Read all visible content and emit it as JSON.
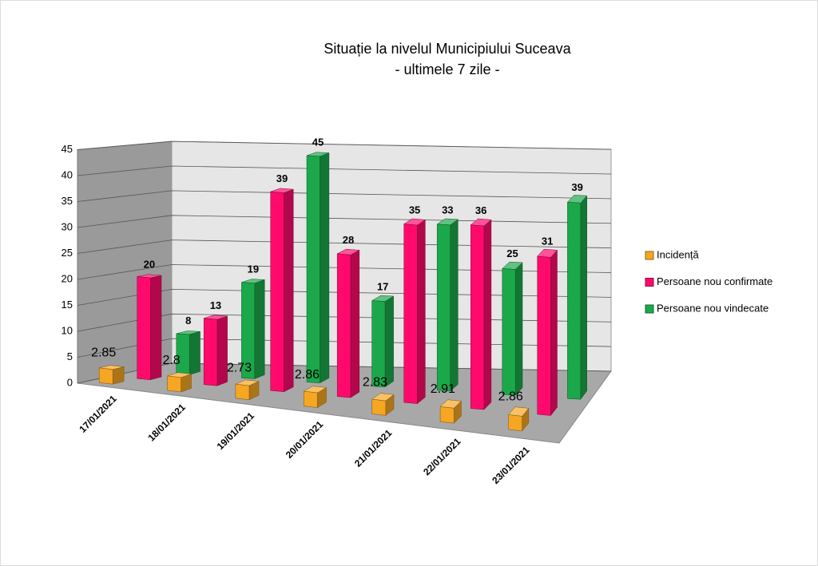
{
  "chart_data": {
    "type": "bar3d",
    "title": [
      "Situație la nivelul Municipiului Suceava",
      "- ultimele 7 zile -"
    ],
    "categories": [
      "17/01/2021",
      "18/01/2021",
      "19/01/2021",
      "20/01/2021",
      "21/01/2021",
      "22/01/2021",
      "23/01/2021"
    ],
    "series": [
      {
        "name": "Incidență",
        "color": "#f5a623",
        "values": [
          2.85,
          2.8,
          2.73,
          2.86,
          2.83,
          2.91,
          2.86
        ]
      },
      {
        "name": "Persoane nou confirmate",
        "color": "#ff0a6c",
        "values": [
          20,
          13,
          39,
          28,
          35,
          36,
          31
        ]
      },
      {
        "name": "Persoane nou vindecate",
        "color": "#1ba84a",
        "values": [
          8,
          19,
          45,
          17,
          33,
          25,
          39
        ]
      }
    ],
    "ylim": [
      0,
      45
    ],
    "yticks": [
      0,
      5,
      10,
      15,
      20,
      25,
      30,
      35,
      40,
      45
    ],
    "grid": true,
    "legend": "right"
  }
}
